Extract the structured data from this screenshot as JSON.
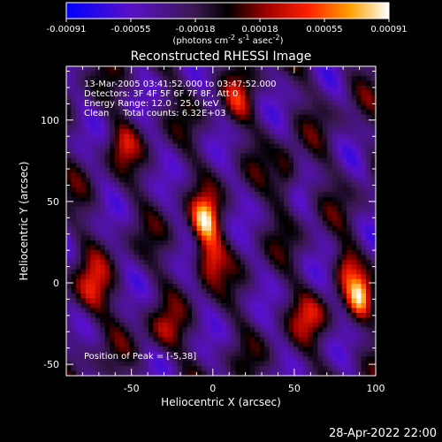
{
  "chart_data": {
    "type": "heatmap",
    "title": "Reconstructed RHESSI Image",
    "xlabel": "Heliocentric X (arcsec)",
    "ylabel": "Heliocentric Y (arcsec)",
    "xlim": [
      -90,
      100
    ],
    "ylim": [
      -57,
      133
    ],
    "xticks": [
      -50,
      0,
      50,
      100
    ],
    "yticks": [
      -50,
      0,
      50,
      100
    ],
    "colorbar": {
      "range": [
        -0.00091,
        0.00091
      ],
      "tick_labels": [
        "-0.00091",
        "-0.00055",
        "-0.00018",
        "0.00018",
        "0.00055",
        "0.00091"
      ],
      "label_prefix": "(photons cm",
      "label_exp1": "-2",
      "label_mid": " s",
      "label_exp2": "-1",
      "label_mid2": " asec",
      "label_exp3": "-2",
      "label_suffix": ")"
    },
    "annotations": [
      "13-Mar-2005 03:41:52.000 to 03:47:52.000",
      "Detectors: 3F 4F 5F 6F 7F 8F, Att 0",
      "Energy Range: 12.0 - 25.0 keV",
      "Clean     Total counts: 6.32E+03"
    ],
    "peak_label": "Position of Peak = [-5,38]",
    "peak": [
      -5,
      38
    ],
    "sources": [
      {
        "x": -5,
        "y": 38,
        "sx": 6,
        "sy": 10,
        "amp": 1.0
      },
      {
        "x": -2,
        "y": 15,
        "sx": 6,
        "sy": 10,
        "amp": 0.7
      },
      {
        "x": 90,
        "y": -8,
        "sx": 5,
        "sy": 10,
        "amp": 0.85
      },
      {
        "x": 82,
        "y": 10,
        "sx": 5,
        "sy": 9,
        "amp": 0.55
      },
      {
        "x": -75,
        "y": -5,
        "sx": 8,
        "sy": 12,
        "amp": 0.6
      },
      {
        "x": 15,
        "y": 110,
        "sx": 6,
        "sy": 10,
        "amp": 0.45
      },
      {
        "x": 45,
        "y": 65,
        "sx": 5,
        "sy": 12,
        "amp": 0.45
      },
      {
        "x": -55,
        "y": 85,
        "sx": 6,
        "sy": 9,
        "amp": 0.4
      },
      {
        "x": 60,
        "y": -20,
        "sx": 8,
        "sy": 10,
        "amp": 0.45
      },
      {
        "x": -30,
        "y": -30,
        "sx": 8,
        "sy": 9,
        "amp": 0.4
      }
    ]
  },
  "timestamp": "28-Apr-2022 22:00"
}
